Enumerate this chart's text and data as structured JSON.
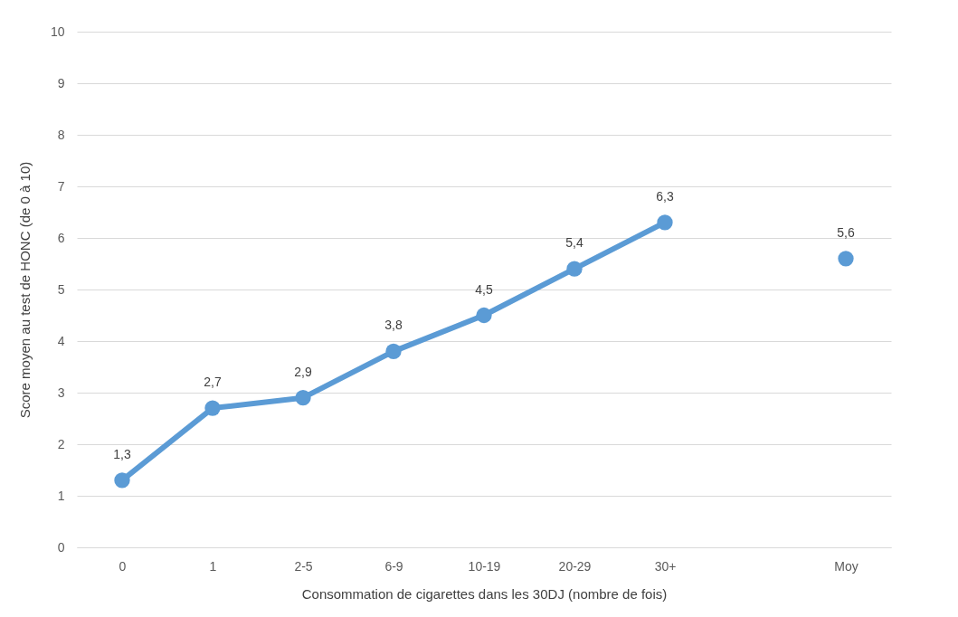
{
  "chart_data": {
    "type": "line",
    "xlabel": "Consommation de cigarettes dans les 30DJ (nombre de fois)",
    "ylabel": "Score moyen au test de HONC (de 0 à 10)",
    "categories": [
      "0",
      "1",
      "2-5",
      "6-9",
      "10-19",
      "20-29",
      "30+",
      null,
      "Moy"
    ],
    "series": [
      {
        "color": "#5b9bd5",
        "values": [
          1.3,
          2.7,
          2.9,
          3.8,
          4.5,
          5.4,
          6.3,
          null,
          null
        ],
        "value_labels": [
          "1,3",
          "2,7",
          "2,9",
          "3,8",
          "4,5",
          "5,4",
          "6,3",
          null,
          null
        ]
      },
      {
        "type": "scatter",
        "color": "#5b9bd5",
        "values": [
          null,
          null,
          null,
          null,
          null,
          null,
          null,
          null,
          5.6
        ],
        "value_labels": [
          null,
          null,
          null,
          null,
          null,
          null,
          null,
          null,
          "5,6"
        ]
      }
    ],
    "ylim": [
      0,
      10
    ],
    "yticks": [
      0,
      1,
      2,
      3,
      4,
      5,
      6,
      7,
      8,
      9,
      10
    ],
    "grid": "y",
    "marker": "circle"
  }
}
